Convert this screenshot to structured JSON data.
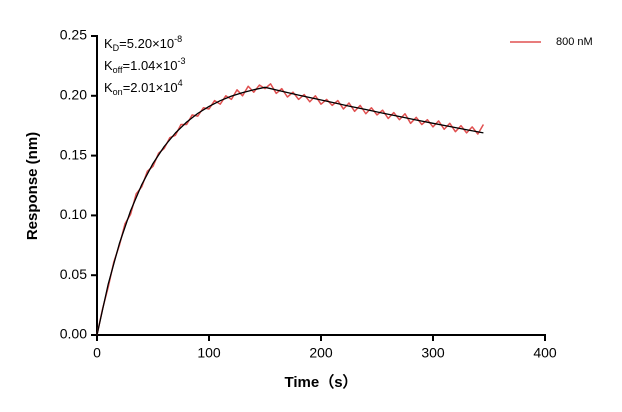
{
  "chart_data": {
    "type": "line",
    "x_label": "Time（s）",
    "y_label": "Response (nm)",
    "xlim": [
      0,
      400
    ],
    "xticks": [
      0,
      100,
      200,
      300,
      400
    ],
    "ylim": [
      0,
      0.25
    ],
    "yticks": [
      {
        "value": 0,
        "label": "0.00"
      },
      {
        "value": 0.05,
        "label": "0.05"
      },
      {
        "value": 0.1,
        "label": "0.10"
      },
      {
        "value": 0.15,
        "label": "0.15"
      },
      {
        "value": 0.2,
        "label": "0.20"
      },
      {
        "value": 0.25,
        "label": "0.25"
      }
    ],
    "legend_position": "upper right",
    "annotations": [
      {
        "symbol": "K",
        "sub": "D",
        "text": "=5.20×10",
        "sup": "-8"
      },
      {
        "symbol": "K",
        "sub": "off",
        "text": "=1.04×10",
        "sup": "-3"
      },
      {
        "symbol": "K",
        "sub": "on",
        "text": "=2.01×10",
        "sup": "4"
      }
    ],
    "series": [
      {
        "name": "800 nM",
        "color": "#e05050",
        "x": [
          0,
          5,
          10,
          15,
          20,
          25,
          30,
          35,
          40,
          45,
          50,
          55,
          60,
          65,
          70,
          75,
          80,
          85,
          90,
          95,
          100,
          105,
          110,
          115,
          120,
          125,
          130,
          135,
          140,
          145,
          150,
          155,
          160,
          165,
          170,
          175,
          180,
          185,
          190,
          195,
          200,
          205,
          210,
          215,
          220,
          225,
          230,
          235,
          240,
          245,
          250,
          255,
          260,
          265,
          270,
          275,
          280,
          285,
          290,
          295,
          300,
          305,
          310,
          315,
          320,
          325,
          330,
          335,
          340,
          345
        ],
        "values": [
          0.0,
          0.022,
          0.04,
          0.061,
          0.075,
          0.093,
          0.101,
          0.118,
          0.124,
          0.137,
          0.141,
          0.152,
          0.156,
          0.165,
          0.167,
          0.176,
          0.176,
          0.184,
          0.183,
          0.19,
          0.189,
          0.196,
          0.193,
          0.2,
          0.197,
          0.205,
          0.2,
          0.208,
          0.203,
          0.209,
          0.206,
          0.21,
          0.202,
          0.206,
          0.199,
          0.203,
          0.197,
          0.201,
          0.195,
          0.2,
          0.193,
          0.197,
          0.192,
          0.196,
          0.189,
          0.194,
          0.187,
          0.192,
          0.185,
          0.19,
          0.184,
          0.188,
          0.181,
          0.186,
          0.18,
          0.185,
          0.177,
          0.182,
          0.176,
          0.18,
          0.174,
          0.179,
          0.172,
          0.177,
          0.17,
          0.175,
          0.169,
          0.174,
          0.168,
          0.176
        ]
      }
    ],
    "fit": {
      "color": "#000000",
      "x": [
        0,
        10,
        20,
        30,
        40,
        50,
        60,
        70,
        80,
        90,
        100,
        110,
        120,
        130,
        140,
        150,
        165,
        180,
        195,
        210,
        225,
        240,
        255,
        270,
        285,
        300,
        315,
        330,
        345
      ],
      "values": [
        0,
        0.0425,
        0.0765,
        0.1039,
        0.1258,
        0.1434,
        0.1576,
        0.1689,
        0.178,
        0.1853,
        0.1911,
        0.1959,
        0.1997,
        0.2027,
        0.2051,
        0.2071,
        0.2038,
        0.2006,
        0.1975,
        0.1945,
        0.1914,
        0.1885,
        0.1855,
        0.1827,
        0.1798,
        0.177,
        0.1743,
        0.1716,
        0.169
      ]
    }
  }
}
